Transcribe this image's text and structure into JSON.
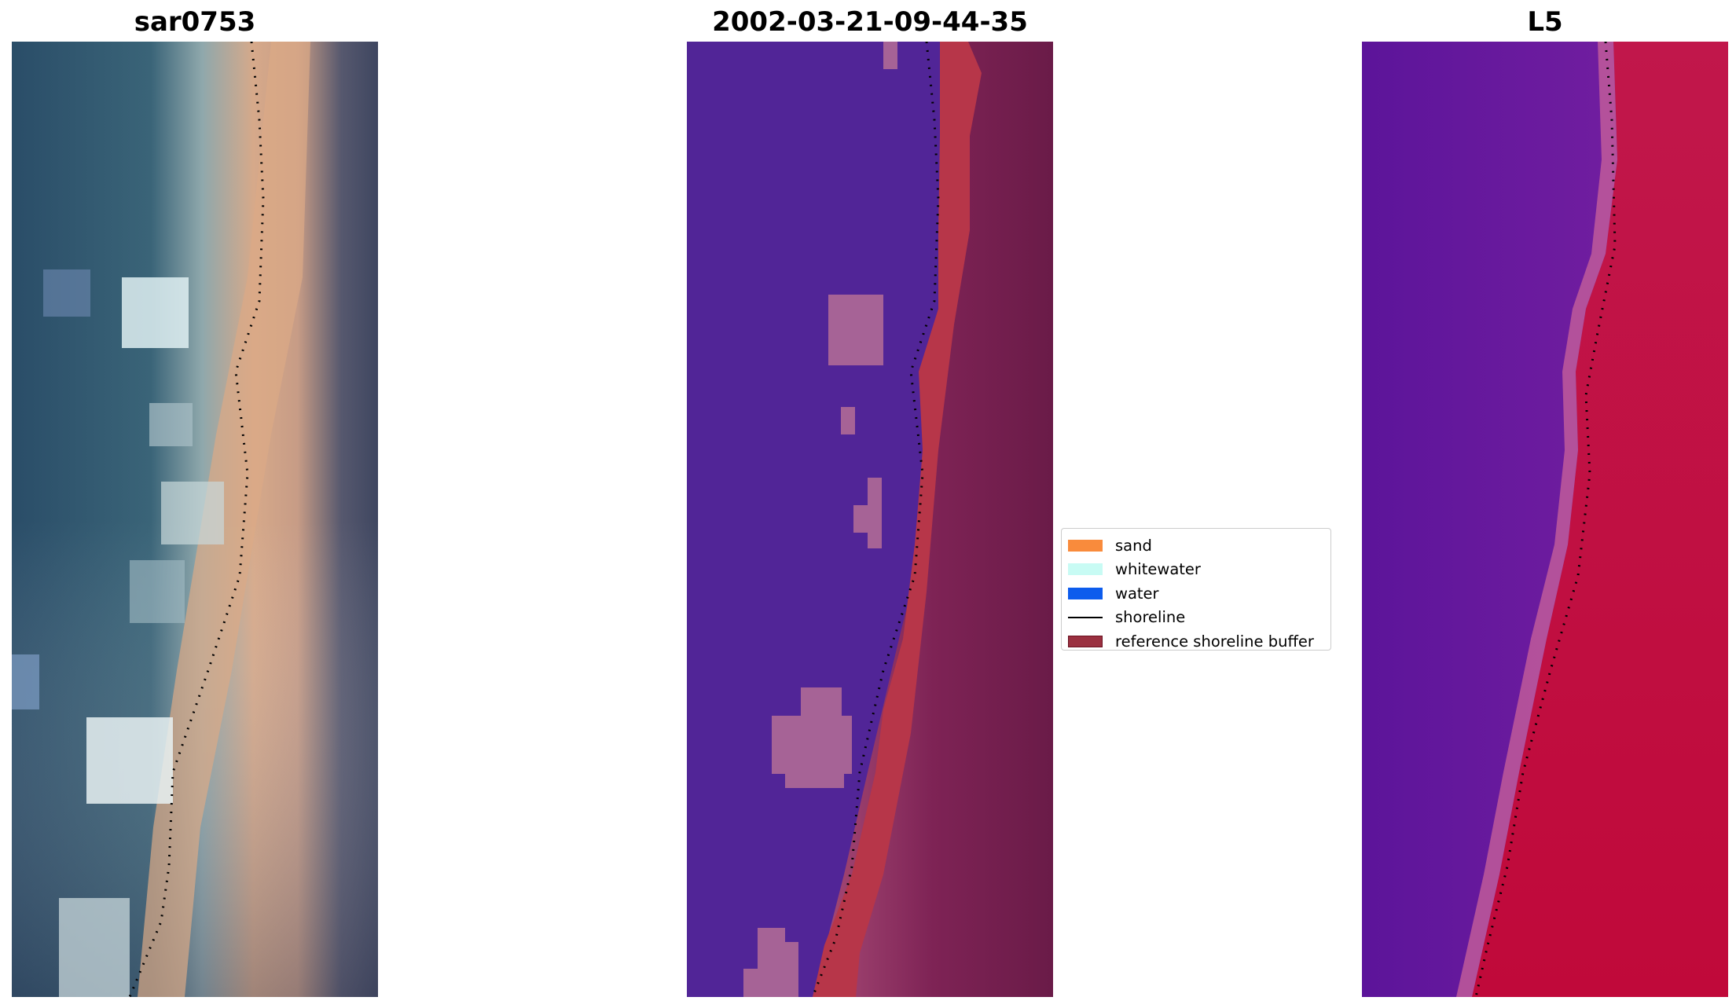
{
  "panels": [
    {
      "title": "sar0753"
    },
    {
      "title": "2002-03-21-09-44-35"
    },
    {
      "title": "L5"
    }
  ],
  "legend": {
    "items": [
      {
        "label": "sand",
        "color": "#f98b3c",
        "kind": "patch"
      },
      {
        "label": "whitewater",
        "color": "#c8fbf4",
        "kind": "patch"
      },
      {
        "label": "water",
        "color": "#0d5ced",
        "kind": "patch"
      },
      {
        "label": "shoreline",
        "color": "#000000",
        "kind": "line"
      },
      {
        "label": "reference shoreline buffer",
        "color": "#9a3040",
        "kind": "patch"
      }
    ]
  },
  "colors": {
    "rgb_ocean": "#2e5672",
    "rgb_sand": "#d9a887",
    "rgb_land": "#4a5068",
    "class_water": "#512597",
    "class_sand": "#b73649",
    "class_whitewater": "#a66396",
    "class_land": "#7e2355",
    "l5_water": "#6c1c9c",
    "l5_land": "#c31a4a"
  }
}
